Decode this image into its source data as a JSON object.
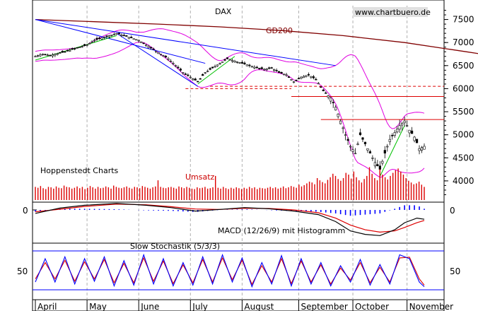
{
  "chart_data": {
    "type": "line",
    "title": "DAX",
    "watermark": "www.chartbuero.de",
    "source_label": "Hoppenstedt Charts",
    "colors": {
      "candle": "#000000",
      "bollinger": "#e000e0",
      "trend": "#0000ff",
      "uptrend": "#00c000",
      "gd200": "#800000",
      "resistance": "#dd0000",
      "volume": "#dd0000",
      "macd": "#000000",
      "signal": "#dd0000",
      "histogram": "#0000ff",
      "stoch_k": "#0000ff",
      "stoch_d": "#dd0000"
    },
    "price_panel": {
      "ylim": [
        3600,
        7800
      ],
      "y_ticks": [
        "7500",
        "7000",
        "6500",
        "6000",
        "5500",
        "5000",
        "4500",
        "4000"
      ],
      "y_tick_values": [
        7500,
        7000,
        6500,
        6000,
        5500,
        5000,
        4500,
        4000
      ],
      "gd200_label": "GD200",
      "gd200": [
        [
          0,
          7500
        ],
        [
          25,
          7450
        ],
        [
          50,
          7400
        ],
        [
          75,
          7340
        ],
        [
          100,
          7260
        ],
        [
          125,
          7150
        ],
        [
          150,
          7000
        ],
        [
          175,
          6800
        ],
        [
          200,
          6600
        ],
        [
          217,
          6500
        ],
        [
          233,
          6400
        ]
      ],
      "close": [
        [
          0,
          6700
        ],
        [
          3,
          6750
        ],
        [
          6,
          6720
        ],
        [
          9,
          6760
        ],
        [
          12,
          6800
        ],
        [
          15,
          6850
        ],
        [
          18,
          6900
        ],
        [
          21,
          6950
        ],
        [
          24,
          7050
        ],
        [
          27,
          7100
        ],
        [
          30,
          7150
        ],
        [
          33,
          7200
        ],
        [
          36,
          7150
        ],
        [
          39,
          7100
        ],
        [
          42,
          7050
        ],
        [
          45,
          6950
        ],
        [
          48,
          6850
        ],
        [
          51,
          6750
        ],
        [
          54,
          6650
        ],
        [
          57,
          6500
        ],
        [
          60,
          6350
        ],
        [
          63,
          6250
        ],
        [
          66,
          6150
        ],
        [
          69,
          6350
        ],
        [
          72,
          6450
        ],
        [
          75,
          6550
        ],
        [
          78,
          6650
        ],
        [
          81,
          6600
        ],
        [
          84,
          6550
        ],
        [
          87,
          6500
        ],
        [
          90,
          6450
        ],
        [
          93,
          6420
        ],
        [
          96,
          6450
        ],
        [
          99,
          6350
        ],
        [
          102,
          6300
        ],
        [
          105,
          6150
        ],
        [
          108,
          6250
        ],
        [
          111,
          6300
        ],
        [
          114,
          6200
        ],
        [
          117,
          5950
        ],
        [
          120,
          5800
        ],
        [
          122,
          5600
        ],
        [
          124,
          5300
        ],
        [
          126,
          5000
        ],
        [
          128,
          4750
        ],
        [
          130,
          4600
        ],
        [
          132,
          5000
        ],
        [
          134,
          4800
        ],
        [
          136,
          4600
        ],
        [
          138,
          4400
        ],
        [
          140,
          4250
        ],
        [
          142,
          4600
        ],
        [
          144,
          4900
        ],
        [
          146,
          5050
        ],
        [
          148,
          5200
        ],
        [
          150,
          5300
        ],
        [
          152,
          5100
        ],
        [
          154,
          4950
        ],
        [
          156,
          4700
        ],
        [
          158,
          4750
        ]
      ],
      "resistance_dashed": [
        [
          {
            "x": 71,
            "y": 6050
          },
          {
            "x": 152,
            "y": 6050
          }
        ],
        [
          {
            "x": 61,
            "y": 6000
          },
          {
            "x": 104,
            "y": 6000
          }
        ]
      ],
      "resistance_solid": [
        [
          {
            "x": 104,
            "y": 5830
          },
          {
            "x": 152,
            "y": 5830
          }
        ],
        [
          {
            "x": 116,
            "y": 5330
          },
          {
            "x": 152,
            "y": 5330
          }
        ]
      ],
      "downtrend_lines": [
        [
          {
            "x": 0,
            "y": 7500
          },
          {
            "x": 122,
            "y": 6500
          }
        ],
        [
          {
            "x": 0,
            "y": 7500
          },
          {
            "x": 69,
            "y": 6550
          }
        ],
        [
          {
            "x": 33,
            "y": 7200
          },
          {
            "x": 66,
            "y": 6050
          }
        ]
      ],
      "uptrend_lines": [
        [
          {
            "x": 0,
            "y": 6620
          },
          {
            "x": 33,
            "y": 7150
          }
        ],
        [
          {
            "x": 66,
            "y": 6100
          },
          {
            "x": 81,
            "y": 6700
          }
        ],
        [
          {
            "x": 140,
            "y": 4100
          },
          {
            "x": 150,
            "y": 5200
          }
        ]
      ]
    },
    "volume_panel": {
      "label": "Umsatz",
      "values": [
        30,
        28,
        32,
        27,
        25,
        30,
        29,
        26,
        31,
        28,
        27,
        33,
        30,
        29,
        26,
        28,
        31,
        27,
        30,
        25,
        28,
        32,
        29,
        26,
        30,
        27,
        28,
        31,
        29,
        26,
        33,
        30,
        28,
        27,
        29,
        31,
        28,
        26,
        30,
        29,
        27,
        32,
        30,
        28,
        26,
        29,
        31,
        45,
        30,
        28,
        27,
        29,
        30,
        28,
        26,
        31,
        29,
        27,
        30,
        28,
        26,
        25,
        29,
        27,
        28,
        30,
        26,
        27,
        29,
        55,
        28,
        26,
        30,
        27,
        25,
        28,
        26,
        29,
        27,
        25,
        28,
        26,
        30,
        27,
        29,
        25,
        28,
        27,
        26,
        28,
        30,
        27,
        29,
        26,
        28,
        31,
        27,
        29,
        32,
        30,
        28,
        35,
        31,
        34,
        38,
        42,
        40,
        36,
        50,
        45,
        41,
        38,
        46,
        52,
        60,
        55,
        48,
        44,
        50,
        62,
        58,
        49,
        65,
        52,
        45,
        40,
        48,
        55,
        75,
        60,
        50,
        45,
        70,
        58,
        52,
        47,
        55,
        62,
        68,
        72,
        65,
        58,
        50,
        44,
        40,
        36,
        38,
        42,
        35,
        30
      ]
    },
    "macd_panel": {
      "label": "MACD (12/26/9) mit Histogramm",
      "zero_label": "0",
      "macd": [
        [
          0,
          -15
        ],
        [
          10,
          8
        ],
        [
          20,
          20
        ],
        [
          33,
          28
        ],
        [
          45,
          20
        ],
        [
          55,
          10
        ],
        [
          65,
          -5
        ],
        [
          75,
          2
        ],
        [
          85,
          10
        ],
        [
          95,
          5
        ],
        [
          105,
          -5
        ],
        [
          115,
          -20
        ],
        [
          122,
          -50
        ],
        [
          128,
          -90
        ],
        [
          134,
          -105
        ],
        [
          140,
          -110
        ],
        [
          146,
          -85
        ],
        [
          150,
          -55
        ],
        [
          155,
          -35
        ],
        [
          158,
          -40
        ]
      ],
      "signal": [
        [
          0,
          -8
        ],
        [
          10,
          3
        ],
        [
          20,
          15
        ],
        [
          33,
          25
        ],
        [
          45,
          22
        ],
        [
          55,
          14
        ],
        [
          65,
          4
        ],
        [
          75,
          2
        ],
        [
          85,
          7
        ],
        [
          95,
          6
        ],
        [
          105,
          0
        ],
        [
          115,
          -12
        ],
        [
          122,
          -35
        ],
        [
          128,
          -65
        ],
        [
          134,
          -85
        ],
        [
          140,
          -95
        ],
        [
          146,
          -90
        ],
        [
          150,
          -75
        ],
        [
          155,
          -55
        ],
        [
          158,
          -45
        ]
      ],
      "histogram": [
        -7,
        5,
        5,
        3,
        -2,
        -4,
        -9,
        0,
        3,
        -1,
        -5,
        -8,
        -15,
        -25,
        -20,
        -15,
        5,
        20,
        20,
        5
      ]
    },
    "stochastic_panel": {
      "label": "Slow Stochastik (5/3/3)",
      "y_tick_label": "50",
      "k": [
        [
          0,
          20
        ],
        [
          4,
          80
        ],
        [
          8,
          20
        ],
        [
          12,
          85
        ],
        [
          16,
          15
        ],
        [
          20,
          80
        ],
        [
          24,
          22
        ],
        [
          28,
          85
        ],
        [
          32,
          10
        ],
        [
          36,
          75
        ],
        [
          40,
          12
        ],
        [
          44,
          90
        ],
        [
          48,
          15
        ],
        [
          52,
          80
        ],
        [
          56,
          10
        ],
        [
          60,
          70
        ],
        [
          64,
          12
        ],
        [
          68,
          85
        ],
        [
          72,
          15
        ],
        [
          76,
          90
        ],
        [
          80,
          20
        ],
        [
          84,
          82
        ],
        [
          88,
          8
        ],
        [
          92,
          70
        ],
        [
          96,
          15
        ],
        [
          100,
          88
        ],
        [
          104,
          10
        ],
        [
          108,
          80
        ],
        [
          112,
          15
        ],
        [
          116,
          70
        ],
        [
          120,
          10
        ],
        [
          124,
          62
        ],
        [
          128,
          20
        ],
        [
          132,
          78
        ],
        [
          136,
          12
        ],
        [
          140,
          65
        ],
        [
          144,
          15
        ],
        [
          148,
          90
        ],
        [
          152,
          80
        ],
        [
          156,
          20
        ],
        [
          158,
          8
        ]
      ],
      "d": [
        [
          0,
          28
        ],
        [
          4,
          70
        ],
        [
          8,
          28
        ],
        [
          12,
          76
        ],
        [
          16,
          22
        ],
        [
          20,
          72
        ],
        [
          24,
          28
        ],
        [
          28,
          78
        ],
        [
          32,
          18
        ],
        [
          36,
          68
        ],
        [
          40,
          18
        ],
        [
          44,
          82
        ],
        [
          48,
          22
        ],
        [
          52,
          74
        ],
        [
          56,
          16
        ],
        [
          60,
          64
        ],
        [
          64,
          18
        ],
        [
          68,
          78
        ],
        [
          72,
          20
        ],
        [
          76,
          82
        ],
        [
          80,
          26
        ],
        [
          84,
          76
        ],
        [
          88,
          14
        ],
        [
          92,
          62
        ],
        [
          96,
          20
        ],
        [
          100,
          80
        ],
        [
          104,
          16
        ],
        [
          108,
          74
        ],
        [
          112,
          20
        ],
        [
          116,
          64
        ],
        [
          120,
          15
        ],
        [
          124,
          56
        ],
        [
          128,
          25
        ],
        [
          132,
          70
        ],
        [
          136,
          18
        ],
        [
          140,
          58
        ],
        [
          144,
          20
        ],
        [
          148,
          82
        ],
        [
          152,
          84
        ],
        [
          156,
          28
        ],
        [
          158,
          12
        ]
      ]
    },
    "x_axis": {
      "categories": [
        "April",
        "May",
        "June",
        "July",
        "August",
        "September",
        "October",
        "November"
      ],
      "month_start_index": [
        0,
        21,
        42,
        63,
        84,
        107,
        129,
        151
      ],
      "n_points": 159
    }
  }
}
